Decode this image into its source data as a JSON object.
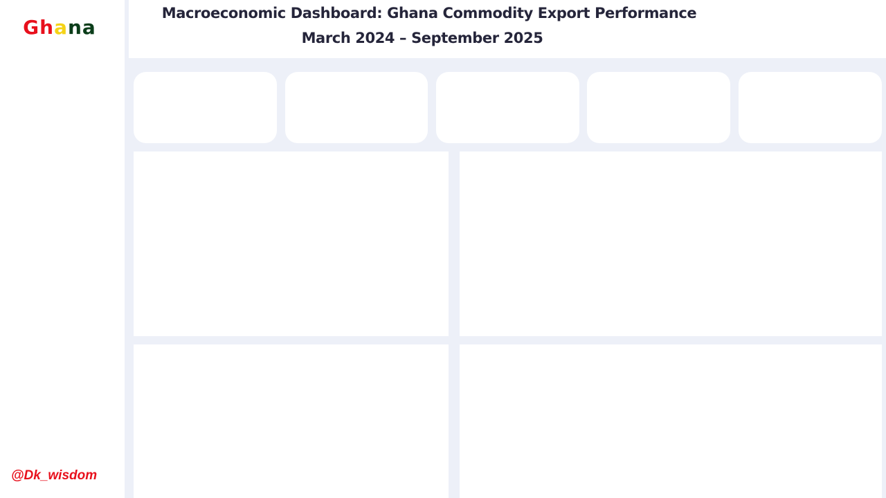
{
  "sidebar": {
    "brand_letters": [
      {
        "char": "G",
        "color": "#e8101c"
      },
      {
        "char": "h",
        "color": "#e8101c"
      },
      {
        "char": "a",
        "color": "#f5d317"
      },
      {
        "char": "n",
        "color": "#0b3d1a"
      },
      {
        "char": "a",
        "color": "#0b3d1a"
      }
    ],
    "handle": "@Dk_wisdom",
    "handle_color": "#e8101c"
  },
  "header": {
    "title": "Macroeconomic Dashboard: Ghana Commodity Export Performance",
    "subtitle": "March 2024 – September 2025"
  },
  "colors": {
    "canvas_background": "#edf0f8",
    "card_background": "#ffffff",
    "title_text": "#25253a"
  }
}
